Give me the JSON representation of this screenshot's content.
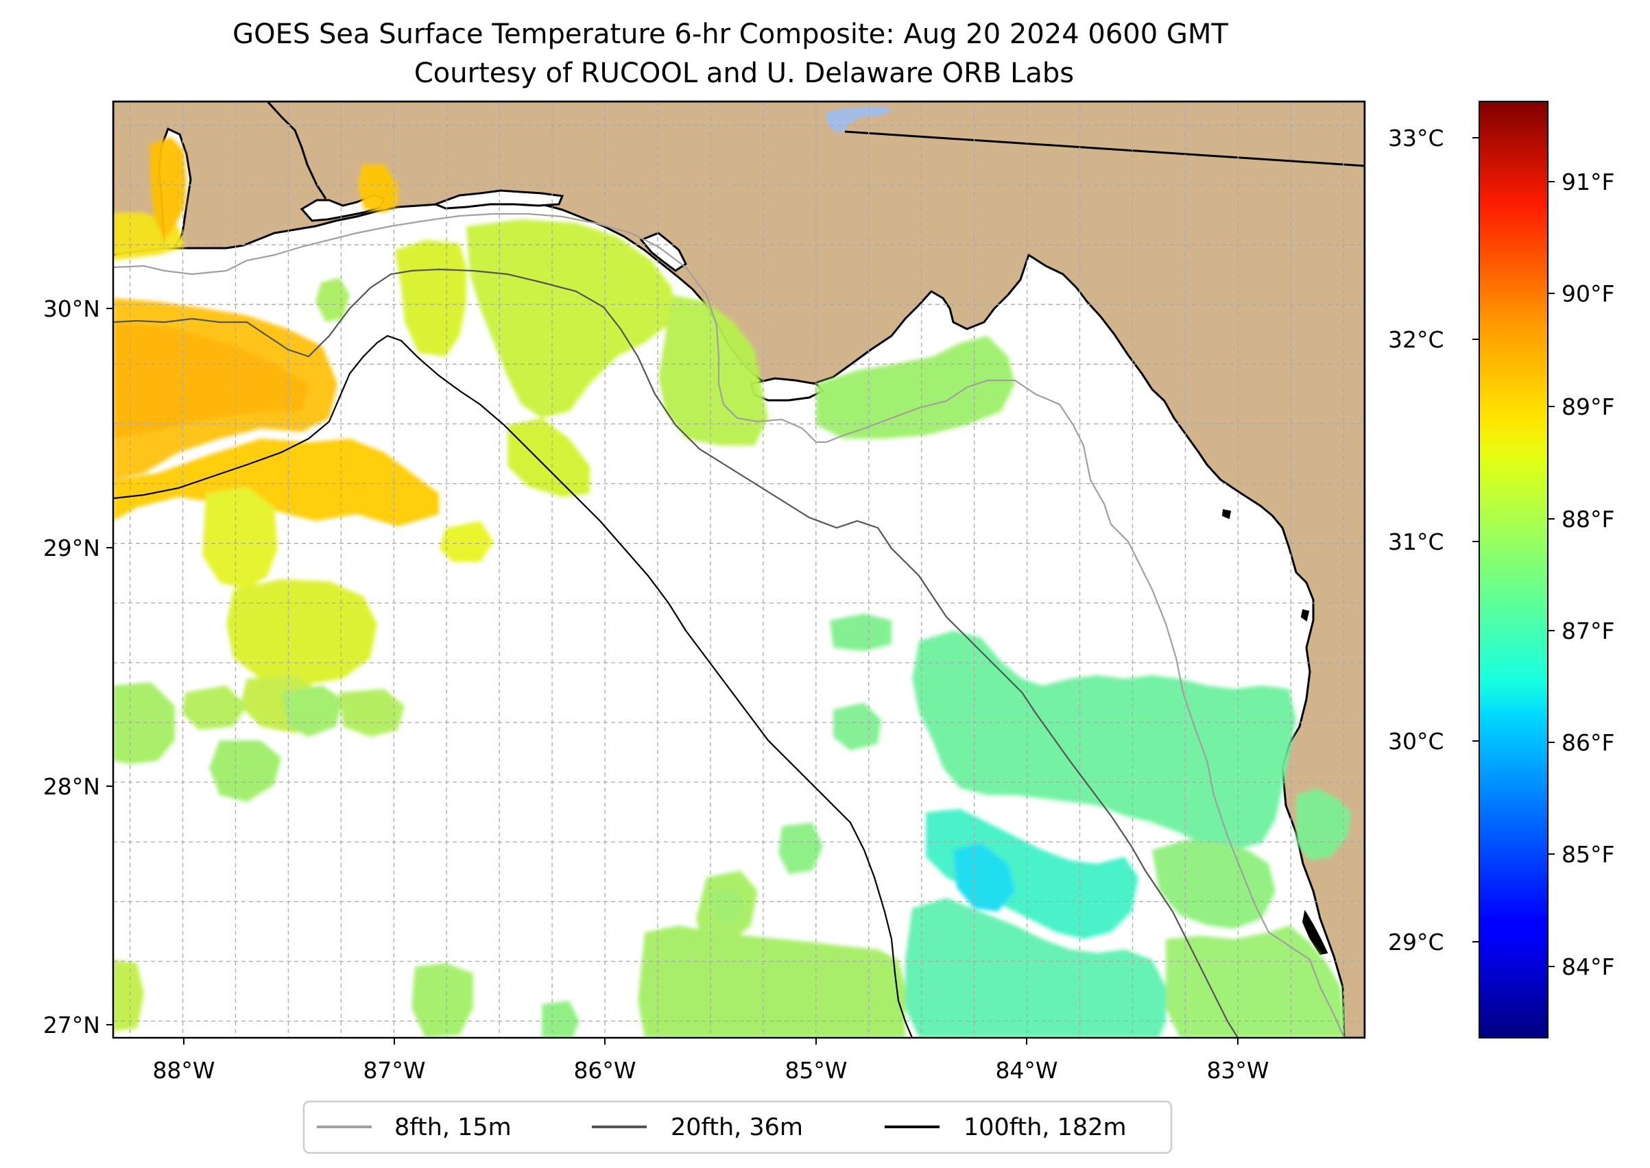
{
  "title": {
    "line1": "GOES Sea Surface Temperature 6-hr Composite: Aug 20 2024 0600 GMT",
    "line2": "Courtesy of RUCOOL and U. Delaware ORB Labs"
  },
  "map": {
    "extent": {
      "lon_min": -88.33,
      "lon_max": -82.4,
      "lat_min": 26.93,
      "lat_max": 30.85
    },
    "land_color": "#d2b48c",
    "water_color": "#ffffff",
    "lake_color": "#a3bce6",
    "grid": "on, dashed, every 0.25 degrees",
    "lon_ticks": [
      {
        "value": -88,
        "label": "88°W"
      },
      {
        "value": -87,
        "label": "87°W"
      },
      {
        "value": -86,
        "label": "86°W"
      },
      {
        "value": -85,
        "label": "85°W"
      },
      {
        "value": -84,
        "label": "84°W"
      },
      {
        "value": -83,
        "label": "83°W"
      }
    ],
    "lat_ticks": [
      {
        "value": 30,
        "label": "30°N"
      },
      {
        "value": 29,
        "label": "29°N"
      },
      {
        "value": 28,
        "label": "28°N"
      },
      {
        "value": 27,
        "label": "27°N"
      }
    ]
  },
  "colorbar": {
    "colormap": "jet",
    "min_c": 28.5,
    "max_c": 33.2,
    "celsius_ticks": [
      {
        "value": 33,
        "label": "33°C"
      },
      {
        "value": 32,
        "label": "32°C"
      },
      {
        "value": 31,
        "label": "31°C"
      },
      {
        "value": 30,
        "label": "30°C"
      },
      {
        "value": 29,
        "label": "29°C"
      }
    ],
    "fahrenheit_ticks": [
      {
        "value": 91,
        "label": "91°F"
      },
      {
        "value": 90,
        "label": "90°F"
      },
      {
        "value": 89,
        "label": "89°F"
      },
      {
        "value": 88,
        "label": "88°F"
      },
      {
        "value": 87,
        "label": "87°F"
      },
      {
        "value": 86,
        "label": "86°F"
      },
      {
        "value": 85,
        "label": "85°F"
      },
      {
        "value": 84,
        "label": "84°F"
      }
    ]
  },
  "legend": {
    "items": [
      {
        "label": "8fth, 15m",
        "color": "#a0a0a0"
      },
      {
        "label": "20fth, 36m",
        "color": "#555555"
      },
      {
        "label": "100fth, 182m",
        "color": "#000000"
      }
    ]
  }
}
